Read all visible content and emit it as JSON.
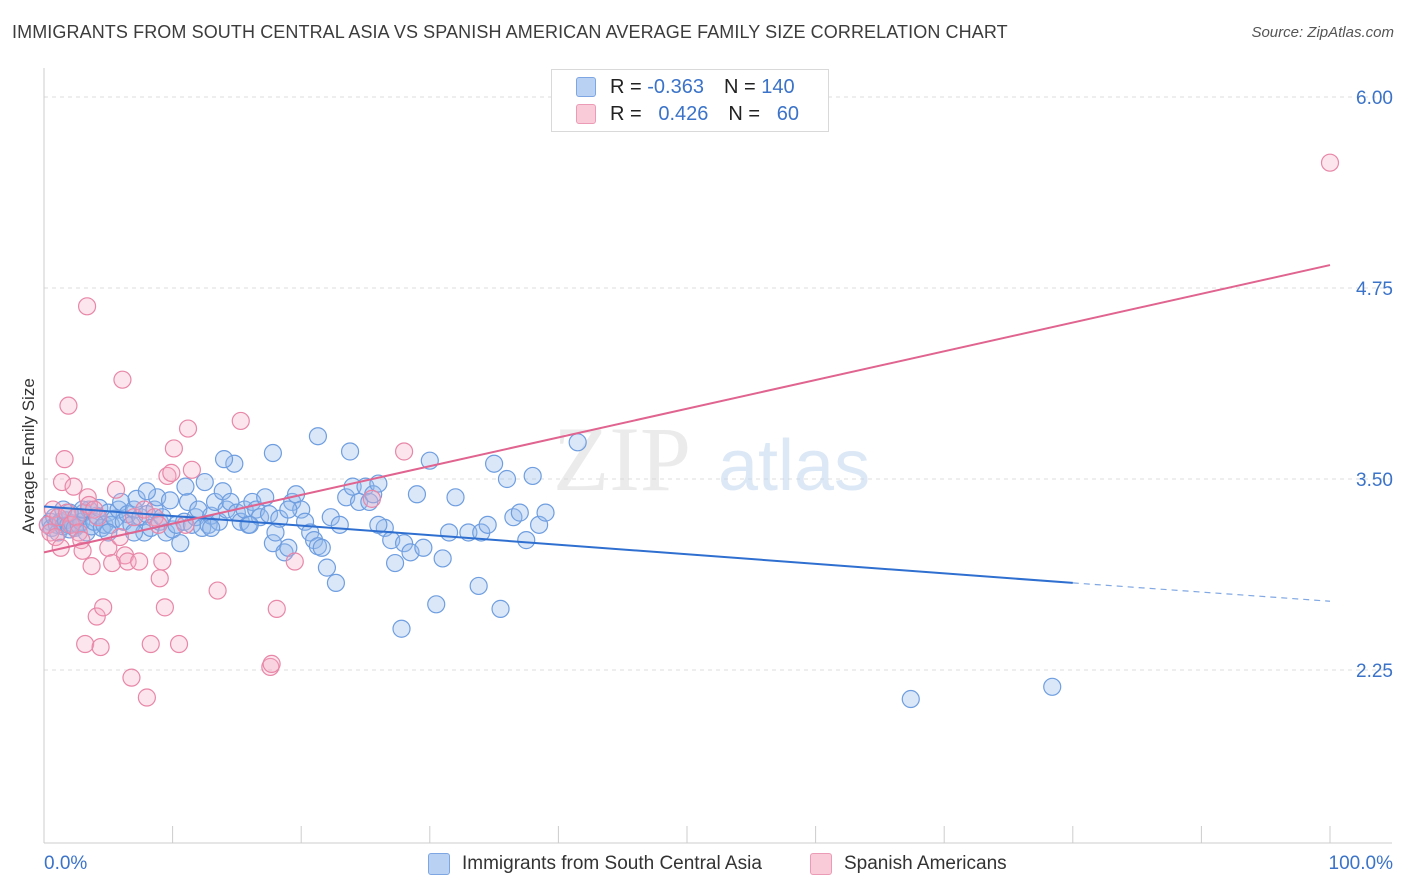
{
  "title": "IMMIGRANTS FROM SOUTH CENTRAL ASIA VS SPANISH AMERICAN AVERAGE FAMILY SIZE CORRELATION CHART",
  "source": "Source: ZipAtlas.com",
  "watermark": {
    "zip": "ZIP",
    "atlas": "atlas"
  },
  "legend": {
    "rows": [
      {
        "r_label": "R =",
        "r_value": "-0.363",
        "n_label": "N =",
        "n_value": "140",
        "color": "#a8c4ee",
        "border": "#6f9ee0"
      },
      {
        "r_label": "R =",
        "r_value": "0.426",
        "n_label": "N =",
        "n_value": "60",
        "color": "#f6b5c9",
        "border": "#e887a8"
      }
    ]
  },
  "bottom_legend": [
    {
      "label": "Immigrants from South Central Asia",
      "color": "#b9d2f3",
      "border": "#7ea6e2"
    },
    {
      "label": "Spanish Americans",
      "color": "#f9cad8",
      "border": "#eb9bb6"
    }
  ],
  "chart_data": {
    "type": "scatter",
    "xlabel": "",
    "ylabel": "Average Family Size",
    "x_tick_labels": {
      "left": "0.0%",
      "right": "100.0%"
    },
    "y_ticks": [
      {
        "value": 6.0,
        "label": "6.00"
      },
      {
        "value": 4.75,
        "label": "4.75"
      },
      {
        "value": 3.5,
        "label": "3.50"
      },
      {
        "value": 2.25,
        "label": "2.25"
      }
    ],
    "xlim": [
      0,
      100
    ],
    "ylim": [
      1.0,
      6.15
    ],
    "grid": "horizontal dashed",
    "series": [
      {
        "name": "Immigrants from South Central Asia",
        "color": "#6f9ee0",
        "fill": "rgba(150,185,235,0.35)",
        "trend": {
          "x1": 0,
          "y1": 3.32,
          "x2": 80,
          "y2": 2.82,
          "dash_to": 100,
          "dash_y": 2.7
        },
        "points": [
          [
            0.3,
            3.2
          ],
          [
            0.5,
            3.22
          ],
          [
            0.6,
            3.18
          ],
          [
            0.8,
            3.25
          ],
          [
            1.0,
            3.2
          ],
          [
            1.1,
            3.15
          ],
          [
            1.3,
            3.22
          ],
          [
            1.5,
            3.19
          ],
          [
            1.7,
            3.23
          ],
          [
            1.9,
            3.2
          ],
          [
            2.0,
            3.17
          ],
          [
            2.2,
            3.21
          ],
          [
            2.4,
            3.18
          ],
          [
            2.5,
            3.25
          ],
          [
            2.7,
            3.2
          ],
          [
            2.9,
            3.22
          ],
          [
            3.1,
            3.28
          ],
          [
            3.3,
            3.15
          ],
          [
            3.5,
            3.3
          ],
          [
            3.7,
            3.19
          ],
          [
            3.9,
            3.22
          ],
          [
            4.1,
            3.26
          ],
          [
            4.3,
            3.31
          ],
          [
            4.5,
            3.18
          ],
          [
            4.7,
            3.2
          ],
          [
            5.0,
            3.28
          ],
          [
            5.2,
            3.2
          ],
          [
            5.5,
            3.24
          ],
          [
            5.8,
            3.3
          ],
          [
            6.0,
            3.35
          ],
          [
            6.2,
            3.22
          ],
          [
            6.5,
            3.27
          ],
          [
            6.8,
            3.2
          ],
          [
            7.0,
            3.3
          ],
          [
            7.2,
            3.37
          ],
          [
            7.5,
            3.25
          ],
          [
            7.8,
            3.15
          ],
          [
            8.0,
            3.27
          ],
          [
            8.3,
            3.18
          ],
          [
            8.6,
            3.3
          ],
          [
            8.8,
            3.38
          ],
          [
            9.0,
            3.22
          ],
          [
            9.2,
            3.25
          ],
          [
            9.5,
            3.15
          ],
          [
            9.8,
            3.36
          ],
          [
            10.0,
            3.17
          ],
          [
            10.3,
            3.2
          ],
          [
            10.6,
            3.08
          ],
          [
            10.9,
            3.22
          ],
          [
            11.2,
            3.35
          ],
          [
            11.5,
            3.2
          ],
          [
            11.8,
            3.25
          ],
          [
            12.0,
            3.3
          ],
          [
            12.3,
            3.18
          ],
          [
            12.5,
            3.48
          ],
          [
            12.8,
            3.2
          ],
          [
            13.0,
            3.26
          ],
          [
            13.3,
            3.35
          ],
          [
            13.6,
            3.22
          ],
          [
            13.9,
            3.42
          ],
          [
            14.2,
            3.3
          ],
          [
            14.5,
            3.35
          ],
          [
            14.8,
            3.6
          ],
          [
            15.0,
            3.28
          ],
          [
            15.3,
            3.22
          ],
          [
            15.6,
            3.3
          ],
          [
            15.9,
            3.2
          ],
          [
            16.2,
            3.35
          ],
          [
            16.5,
            3.3
          ],
          [
            16.8,
            3.25
          ],
          [
            17.2,
            3.38
          ],
          [
            17.5,
            3.27
          ],
          [
            17.8,
            3.08
          ],
          [
            18.0,
            3.15
          ],
          [
            18.3,
            3.24
          ],
          [
            18.7,
            3.02
          ],
          [
            19.0,
            3.05
          ],
          [
            19.3,
            3.35
          ],
          [
            19.6,
            3.4
          ],
          [
            20.0,
            3.3
          ],
          [
            20.3,
            3.22
          ],
          [
            20.7,
            3.15
          ],
          [
            21.0,
            3.1
          ],
          [
            21.3,
            3.06
          ],
          [
            21.6,
            3.05
          ],
          [
            22.0,
            2.92
          ],
          [
            22.3,
            3.25
          ],
          [
            22.7,
            2.82
          ],
          [
            23.0,
            3.2
          ],
          [
            23.5,
            3.38
          ],
          [
            24.0,
            3.45
          ],
          [
            24.5,
            3.35
          ],
          [
            25.0,
            3.45
          ],
          [
            25.3,
            3.35
          ],
          [
            25.6,
            3.4
          ],
          [
            26.0,
            3.47
          ],
          [
            26.5,
            3.18
          ],
          [
            27.0,
            3.1
          ],
          [
            27.3,
            2.95
          ],
          [
            27.8,
            2.52
          ],
          [
            28.0,
            3.08
          ],
          [
            28.5,
            3.02
          ],
          [
            29.0,
            3.4
          ],
          [
            29.5,
            3.05
          ],
          [
            30.0,
            3.62
          ],
          [
            30.5,
            2.68
          ],
          [
            31.0,
            2.98
          ],
          [
            31.5,
            3.15
          ],
          [
            32.0,
            3.38
          ],
          [
            33.0,
            3.15
          ],
          [
            33.8,
            2.8
          ],
          [
            34.0,
            3.15
          ],
          [
            34.5,
            3.2
          ],
          [
            35.0,
            3.6
          ],
          [
            35.5,
            2.65
          ],
          [
            36.0,
            3.5
          ],
          [
            36.5,
            3.25
          ],
          [
            37.0,
            3.28
          ],
          [
            37.5,
            3.1
          ],
          [
            38.0,
            3.52
          ],
          [
            38.5,
            3.2
          ],
          [
            39.0,
            3.28
          ],
          [
            41.5,
            3.74
          ],
          [
            67.4,
            2.06
          ],
          [
            78.4,
            2.14
          ],
          [
            23.8,
            3.68
          ],
          [
            21.3,
            3.78
          ],
          [
            17.8,
            3.67
          ],
          [
            14.0,
            3.63
          ],
          [
            11.0,
            3.45
          ],
          [
            8.0,
            3.42
          ],
          [
            5.0,
            3.15
          ],
          [
            3.0,
            3.3
          ],
          [
            2.0,
            3.28
          ],
          [
            1.5,
            3.3
          ],
          [
            7.0,
            3.15
          ],
          [
            13.0,
            3.18
          ],
          [
            16.0,
            3.2
          ],
          [
            19.0,
            3.3
          ],
          [
            26.0,
            3.2
          ]
        ]
      },
      {
        "name": "Spanish Americans",
        "color": "#e887a8",
        "fill": "rgba(244,170,196,0.3)",
        "trend": {
          "x1": 0,
          "y1": 3.02,
          "x2": 100,
          "y2": 4.9
        },
        "points": [
          [
            0.3,
            3.2
          ],
          [
            0.5,
            3.15
          ],
          [
            0.7,
            3.3
          ],
          [
            0.9,
            3.12
          ],
          [
            1.1,
            3.25
          ],
          [
            1.3,
            3.05
          ],
          [
            1.4,
            3.48
          ],
          [
            1.6,
            3.63
          ],
          [
            1.8,
            3.28
          ],
          [
            1.9,
            3.98
          ],
          [
            2.1,
            3.2
          ],
          [
            2.3,
            3.45
          ],
          [
            2.5,
            3.25
          ],
          [
            2.7,
            3.15
          ],
          [
            2.9,
            3.1
          ],
          [
            3.0,
            3.03
          ],
          [
            3.2,
            2.42
          ],
          [
            3.4,
            3.38
          ],
          [
            3.5,
            3.33
          ],
          [
            3.7,
            2.93
          ],
          [
            3.9,
            3.3
          ],
          [
            4.1,
            2.6
          ],
          [
            4.2,
            3.25
          ],
          [
            4.4,
            2.4
          ],
          [
            4.6,
            2.66
          ],
          [
            5.0,
            3.05
          ],
          [
            5.3,
            2.95
          ],
          [
            5.6,
            3.43
          ],
          [
            5.9,
            3.12
          ],
          [
            6.1,
            4.15
          ],
          [
            6.3,
            3.0
          ],
          [
            6.5,
            2.96
          ],
          [
            6.8,
            2.2
          ],
          [
            7.0,
            3.25
          ],
          [
            7.4,
            2.96
          ],
          [
            7.8,
            3.3
          ],
          [
            8.0,
            2.07
          ],
          [
            8.3,
            2.42
          ],
          [
            8.6,
            3.25
          ],
          [
            8.9,
            3.2
          ],
          [
            9.0,
            2.85
          ],
          [
            9.2,
            2.96
          ],
          [
            9.4,
            2.66
          ],
          [
            9.6,
            3.52
          ],
          [
            9.9,
            3.54
          ],
          [
            10.1,
            3.7
          ],
          [
            10.5,
            2.42
          ],
          [
            11.0,
            3.2
          ],
          [
            11.2,
            3.83
          ],
          [
            11.5,
            3.56
          ],
          [
            13.5,
            2.77
          ],
          [
            15.3,
            3.88
          ],
          [
            17.6,
            2.27
          ],
          [
            17.7,
            2.29
          ],
          [
            18.1,
            2.65
          ],
          [
            19.5,
            2.96
          ],
          [
            25.5,
            3.37
          ],
          [
            28.0,
            3.68
          ],
          [
            100.0,
            5.57
          ],
          [
            3.35,
            4.63
          ]
        ]
      }
    ]
  }
}
